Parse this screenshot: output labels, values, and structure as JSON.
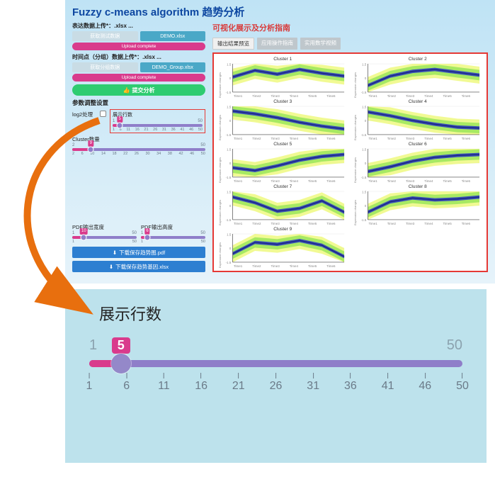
{
  "app": {
    "title": "Fuzzy c-means algorithm 趋势分析",
    "upload1": {
      "label": "表达数据上传*：.xlsx ...",
      "btn_load": "获取测试数据",
      "btn_demo": "DEMO.xlsx",
      "bar": "Upload complete"
    },
    "upload2": {
      "label": "时间点（分组）数据上传*：.xlsx ...",
      "btn_load": "获取分组数据",
      "btn_demo": "DEMO_Group.xlsx",
      "bar": "Upload complete"
    },
    "submit": "提交分析",
    "params_title": "参数调整设置",
    "param_log2": "log2处理",
    "slider_rows": {
      "label": "展示行数",
      "min": "1",
      "max": "50",
      "value": "5",
      "ticks": [
        "1",
        "6",
        "11",
        "16",
        "21",
        "26",
        "31",
        "36",
        "41",
        "46",
        "50"
      ],
      "fill_pct": 8,
      "knob_pct": 8
    },
    "slider_clusters": {
      "label": "Cluster数量",
      "min": "2",
      "max": "50",
      "value": "9",
      "ticks": [
        "2",
        "6",
        "10",
        "14",
        "18",
        "22",
        "26",
        "30",
        "34",
        "38",
        "42",
        "46",
        "50"
      ],
      "fill_pct": 14,
      "knob_pct": 14
    },
    "slider_pdfw": {
      "label": "PDF输出宽度",
      "min": "1",
      "max": "50",
      "value": "10",
      "ticks": [
        "1",
        "50"
      ],
      "fill_pct": 18,
      "knob_pct": 18
    },
    "slider_pdfh": {
      "label": "PDF输出高度",
      "min": "1",
      "max": "50",
      "value": "6",
      "ticks": [
        "1",
        "50"
      ],
      "fill_pct": 10,
      "knob_pct": 10
    },
    "dl_pdf": "下载保存趋势图.pdf",
    "dl_xlsx": "下载保存趋势基因.xlsx",
    "colors": {
      "accent_pink": "#d93b8c",
      "accent_purple": "#8f7ec9",
      "accent_green": "#2ecc71",
      "accent_blue": "#2d7fd1",
      "highlight_red": "#e53935"
    }
  },
  "main": {
    "title": "可视化展示及分析指南",
    "tabs": [
      {
        "label": "输出结果预览",
        "active": true
      },
      {
        "label": "应用操作指南",
        "active": false
      },
      {
        "label": "实用数学视频",
        "active": false
      }
    ],
    "xticks": [
      "Time1",
      "Time2",
      "Time3",
      "Time4",
      "Time5",
      "Time6"
    ],
    "ylabel": "Expression changes",
    "ylim": [
      -1.5,
      1.5
    ],
    "clusters": [
      {
        "title": "Cluster 1",
        "y": [
          0.1,
          0.8,
          0.4,
          0.9,
          0.5,
          0.2
        ]
      },
      {
        "title": "Cluster 2",
        "y": [
          -0.8,
          0.2,
          0.7,
          0.9,
          0.6,
          0.3
        ]
      },
      {
        "title": "Cluster 3",
        "y": [
          1.0,
          0.7,
          0.3,
          -0.2,
          -0.6,
          -0.9
        ]
      },
      {
        "title": "Cluster 4",
        "y": [
          0.9,
          0.5,
          0.0,
          -0.4,
          -0.7,
          -0.8
        ]
      },
      {
        "title": "Cluster 5",
        "y": [
          -0.5,
          -0.8,
          -0.3,
          0.3,
          0.7,
          0.9
        ]
      },
      {
        "title": "Cluster 6",
        "y": [
          -0.9,
          -0.4,
          0.2,
          0.6,
          0.8,
          0.9
        ]
      },
      {
        "title": "Cluster 7",
        "y": [
          0.9,
          0.3,
          -0.6,
          -0.3,
          0.5,
          -0.7
        ]
      },
      {
        "title": "Cluster 8",
        "y": [
          -0.7,
          0.4,
          0.8,
          0.6,
          0.7,
          0.9
        ]
      },
      {
        "title": "Cluster 9",
        "y": [
          -0.6,
          0.6,
          0.4,
          0.8,
          0.3,
          -0.9
        ]
      }
    ],
    "chart_style": {
      "bands": [
        {
          "color": "#e6f53a",
          "spread": 0.9,
          "opacity": 0.55
        },
        {
          "color": "#7fe04a",
          "spread": 0.55,
          "opacity": 0.65
        },
        {
          "color": "#2d3fbf",
          "spread": 0.18,
          "opacity": 0.9
        }
      ],
      "line_color": "#1a237e",
      "line_width": 1.2,
      "axis_color": "#444444",
      "grid_color": "#dddddd",
      "background": "#ffffff"
    }
  },
  "detail": {
    "title": "展示行数",
    "min": "1",
    "max": "50",
    "value": "5",
    "ticks": [
      "1",
      "6",
      "11",
      "16",
      "21",
      "26",
      "31",
      "36",
      "41",
      "46",
      "50"
    ],
    "fill_pct": 8.5,
    "knob_pct": 8.5
  },
  "arrow_color": "#e86f0e"
}
